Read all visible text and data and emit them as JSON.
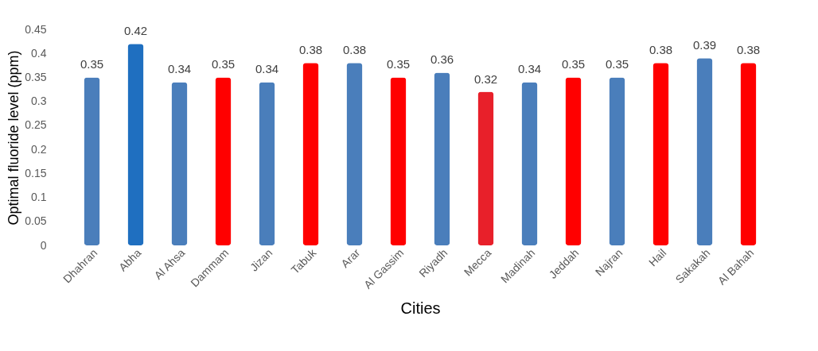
{
  "chart_data": {
    "type": "bar",
    "xlabel": "Cities",
    "ylabel": "Optimal fluoride level (ppm)",
    "categories": [
      "Dhahran",
      "Abha",
      "Al Ahsa",
      "Dammam",
      "Jizan",
      "Tabuk",
      "Arar",
      "Al Gassim",
      "Riyadh",
      "Mecca",
      "Madinah",
      "Jeddah",
      "Najran",
      "Hail",
      "Sakakah",
      "Al Bahah"
    ],
    "values": [
      0.35,
      0.42,
      0.34,
      0.35,
      0.34,
      0.38,
      0.38,
      0.35,
      0.36,
      0.32,
      0.34,
      0.35,
      0.35,
      0.38,
      0.39,
      0.38
    ],
    "colors": [
      "#4a7ebb",
      "#1f6fc0",
      "#4a7ebb",
      "#ff0000",
      "#4a7ebb",
      "#ff0000",
      "#4a7ebb",
      "#ff0000",
      "#4a7ebb",
      "#e8202a",
      "#4a7ebb",
      "#ff0000",
      "#4a7ebb",
      "#ff0000",
      "#4a7ebb",
      "#ff0000"
    ],
    "ylim": [
      0,
      0.45
    ],
    "yticks": [
      0,
      0.05,
      0.1,
      0.15,
      0.2,
      0.25,
      0.3,
      0.35,
      0.4,
      0.45
    ],
    "data_labels": true
  }
}
